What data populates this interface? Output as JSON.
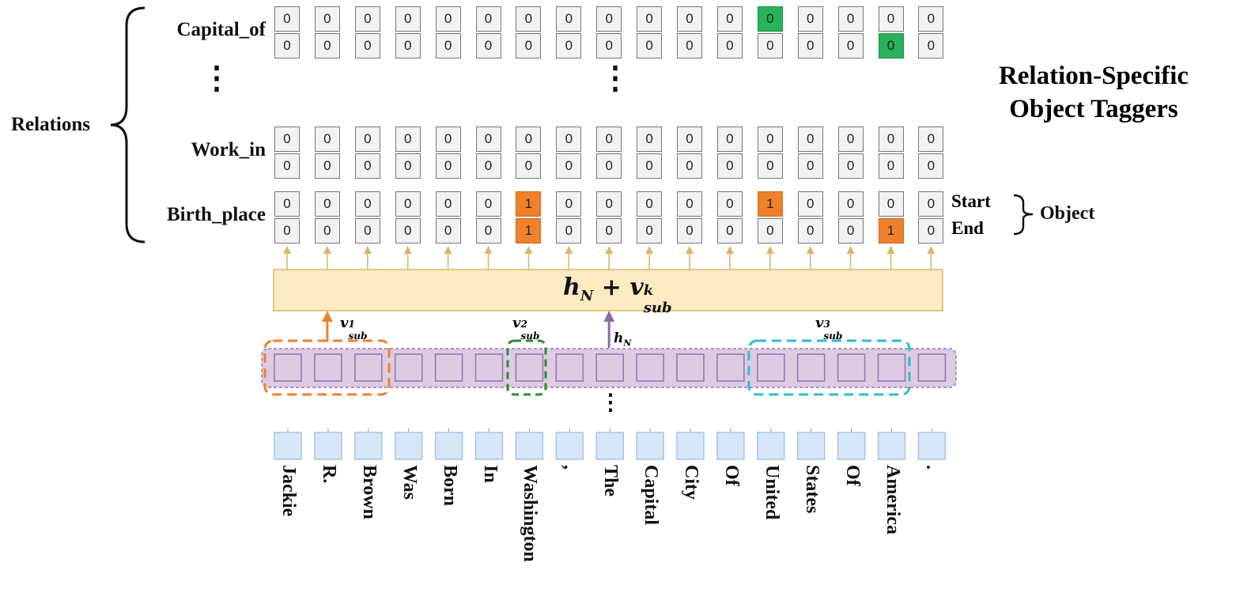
{
  "title": {
    "line1": "Relation-Specific",
    "line2": "Object Taggers"
  },
  "relations_label": "Relations",
  "object_label": "Object",
  "start_label": "Start",
  "end_label": "End",
  "ellipsis": "⋮",
  "rows": [
    {
      "name": "Capital_of",
      "start": [
        "0",
        "0",
        "0",
        "0",
        "0",
        "0",
        "0",
        "0",
        "0",
        "0",
        "0",
        "0",
        "0",
        "0",
        "0",
        "0",
        "0"
      ],
      "end": [
        "0",
        "0",
        "0",
        "0",
        "0",
        "0",
        "0",
        "0",
        "0",
        "0",
        "0",
        "0",
        "0",
        "0",
        "0",
        "0",
        "0"
      ],
      "start_highlight": [
        12
      ],
      "end_highlight": [
        15
      ],
      "color": "green"
    },
    {
      "name": "Work_in",
      "start": [
        "0",
        "0",
        "0",
        "0",
        "0",
        "0",
        "0",
        "0",
        "0",
        "0",
        "0",
        "0",
        "0",
        "0",
        "0",
        "0",
        "0"
      ],
      "end": [
        "0",
        "0",
        "0",
        "0",
        "0",
        "0",
        "0",
        "0",
        "0",
        "0",
        "0",
        "0",
        "0",
        "0",
        "0",
        "0",
        "0"
      ],
      "start_highlight": [],
      "end_highlight": [],
      "color": "none"
    },
    {
      "name": "Birth_place",
      "start": [
        "0",
        "0",
        "0",
        "0",
        "0",
        "0",
        "1",
        "0",
        "0",
        "0",
        "0",
        "0",
        "1",
        "0",
        "0",
        "0",
        "0"
      ],
      "end": [
        "0",
        "0",
        "0",
        "0",
        "0",
        "0",
        "1",
        "0",
        "0",
        "0",
        "0",
        "0",
        "0",
        "0",
        "0",
        "1",
        "0"
      ],
      "start_highlight": [
        6,
        12
      ],
      "end_highlight": [
        6,
        15
      ],
      "color": "orange"
    }
  ],
  "combine_box": {
    "h": "h",
    "h_sub": "N",
    "plus": "+",
    "v": "v",
    "v_sub": "sub",
    "v_sup": "k"
  },
  "subject_labels": [
    {
      "v": "v",
      "sub": "sub",
      "sup": "1"
    },
    {
      "v": "v",
      "sub": "sub",
      "sup": "2"
    },
    {
      "v": "v",
      "sub": "sub",
      "sup": "3"
    }
  ],
  "hn_label": {
    "h": "h",
    "sub": "N"
  },
  "tokens": [
    "Jackie",
    "R.",
    "Brown",
    "Was",
    "Born",
    "In",
    "Washington",
    ",",
    "The",
    "Capital",
    "City",
    "Of",
    "United",
    "States",
    "Of",
    "America",
    "."
  ],
  "colors": {
    "orange": "#f0812b",
    "green": "#27b35a",
    "purple_fill": "#dccbe3",
    "purple_border": "#9a78ae",
    "cyan": "#2bbfc9",
    "dash_green": "#2e8b2e",
    "box_fill": "#fcebc0",
    "box_border": "#d9b763",
    "token_fill": "#d6e6f7",
    "token_border": "#a9c4e3",
    "arrow": "#d7b86a"
  }
}
